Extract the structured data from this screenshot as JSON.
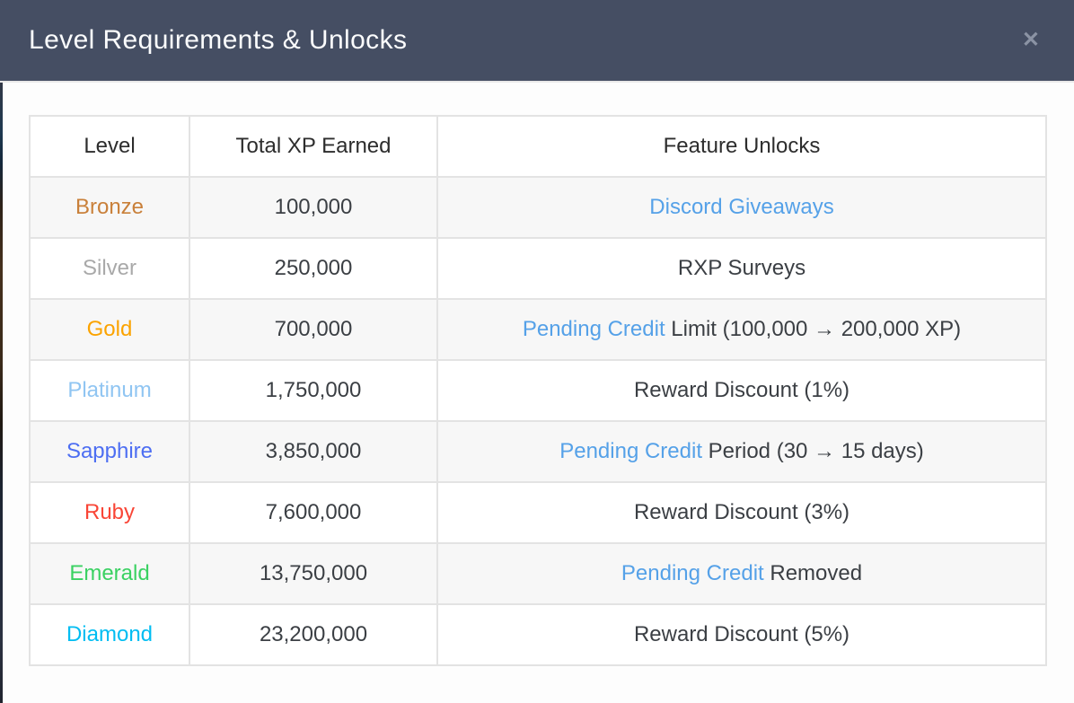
{
  "modal": {
    "title": "Level Requirements & Unlocks",
    "close_icon": "✕",
    "header_bg": "#454e63",
    "link_color": "#55a1e8",
    "stripe_color": "#f7f7f7"
  },
  "table": {
    "headers": [
      "Level",
      "Total XP Earned",
      "Feature Unlocks"
    ],
    "rows": [
      {
        "level": "Bronze",
        "level_color": "#c9803a",
        "xp": "100,000",
        "feature_link": "Discord Giveaways",
        "feature_text": ""
      },
      {
        "level": "Silver",
        "level_color": "#a9a9a9",
        "xp": "250,000",
        "feature_link": "",
        "feature_text": "RXP Surveys"
      },
      {
        "level": "Gold",
        "level_color": "#fba300",
        "xp": "700,000",
        "feature_link": "Pending Credit",
        "feature_text": " Limit (100,000 → 200,000 XP)"
      },
      {
        "level": "Platinum",
        "level_color": "#90c5f2",
        "xp": "1,750,000",
        "feature_link": "",
        "feature_text": "Reward Discount (1%)"
      },
      {
        "level": "Sapphire",
        "level_color": "#4d6ef2",
        "xp": "3,850,000",
        "feature_link": "Pending Credit",
        "feature_text": " Period (30 → 15 days)"
      },
      {
        "level": "Ruby",
        "level_color": "#f94536",
        "xp": "7,600,000",
        "feature_link": "",
        "feature_text": "Reward Discount (3%)"
      },
      {
        "level": "Emerald",
        "level_color": "#3ad162",
        "xp": "13,750,000",
        "feature_link": "Pending Credit",
        "feature_text": " Removed"
      },
      {
        "level": "Diamond",
        "level_color": "#00bdf2",
        "xp": "23,200,000",
        "feature_link": "",
        "feature_text": "Reward Discount (5%)"
      }
    ]
  }
}
